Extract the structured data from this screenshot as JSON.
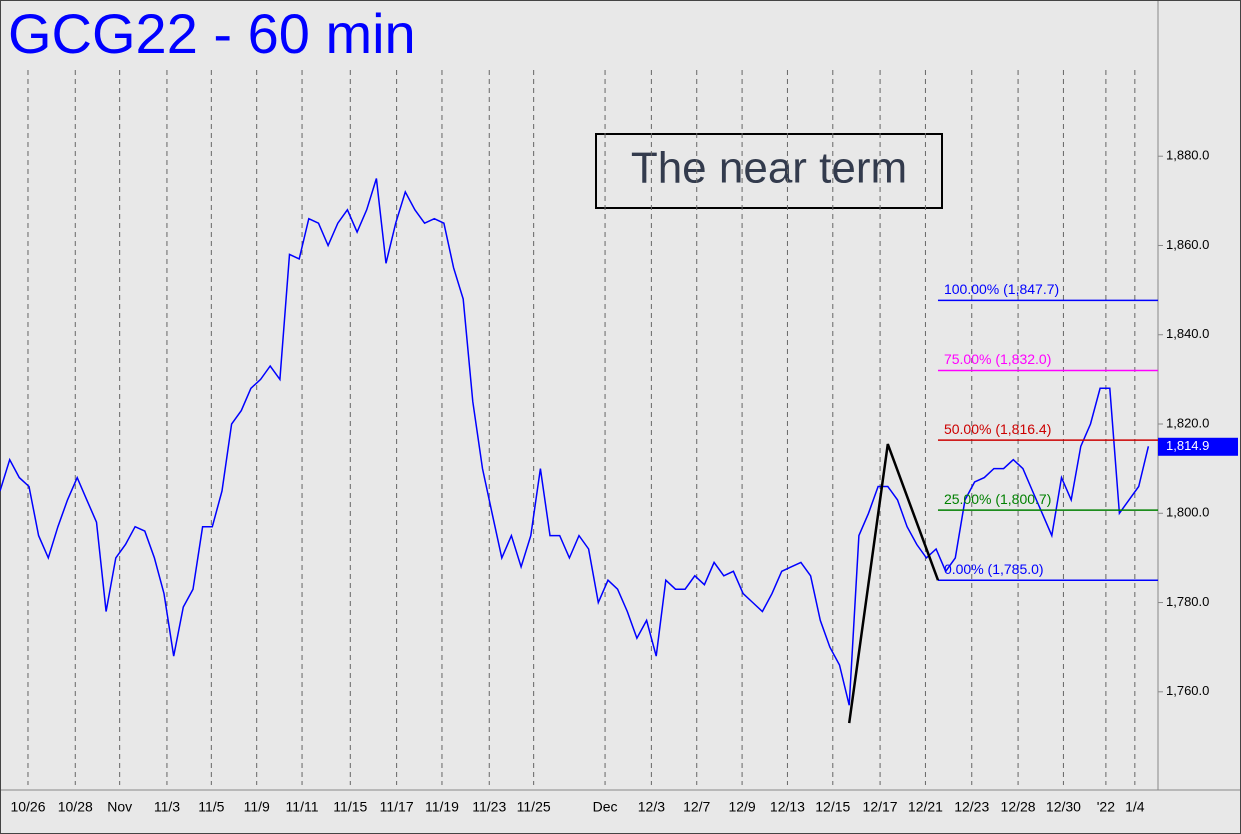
{
  "chart_data": {
    "type": "line",
    "title": "GCG22 - 60 min",
    "annotation": "The near term",
    "xlim": [
      0,
      120
    ],
    "ylim": [
      1738,
      1915
    ],
    "xticks": [
      {
        "value": 2.9,
        "label": "10/26"
      },
      {
        "value": 7.8,
        "label": "10/28"
      },
      {
        "value": 12.4,
        "label": "Nov"
      },
      {
        "value": 17.3,
        "label": "11/3"
      },
      {
        "value": 21.9,
        "label": "11/5"
      },
      {
        "value": 26.6,
        "label": "11/9"
      },
      {
        "value": 31.3,
        "label": "11/11"
      },
      {
        "value": 36.3,
        "label": "11/15"
      },
      {
        "value": 41.1,
        "label": "11/17"
      },
      {
        "value": 45.8,
        "label": "11/19"
      },
      {
        "value": 50.7,
        "label": "11/23"
      },
      {
        "value": 55.3,
        "label": "11/25"
      },
      {
        "value": 62.7,
        "label": "Dec"
      },
      {
        "value": 67.5,
        "label": "12/3"
      },
      {
        "value": 72.2,
        "label": "12/7"
      },
      {
        "value": 76.9,
        "label": "12/9"
      },
      {
        "value": 81.6,
        "label": "12/13"
      },
      {
        "value": 86.3,
        "label": "12/15"
      },
      {
        "value": 91.2,
        "label": "12/17"
      },
      {
        "value": 95.9,
        "label": "12/21"
      },
      {
        "value": 100.7,
        "label": "12/23"
      },
      {
        "value": 105.5,
        "label": "12/28"
      },
      {
        "value": 110.2,
        "label": "12/30"
      },
      {
        "value": 114.6,
        "label": "'22"
      },
      {
        "value": 117.6,
        "label": "1/4"
      }
    ],
    "yticks": [
      {
        "value": 1760,
        "label": "1,760.0"
      },
      {
        "value": 1780,
        "label": "1,780.0"
      },
      {
        "value": 1800,
        "label": "1,800.0"
      },
      {
        "value": 1820,
        "label": "1,820.0"
      },
      {
        "value": 1840,
        "label": "1,840.0"
      },
      {
        "value": 1860,
        "label": "1,860.0"
      },
      {
        "value": 1880,
        "label": "1,880.0"
      }
    ],
    "grid": true,
    "series": [
      {
        "color": "#0000ff",
        "x": [
          0,
          1,
          2,
          3,
          4,
          5,
          6,
          7,
          8,
          9,
          10,
          11,
          12,
          13,
          14,
          15,
          16,
          17,
          18,
          19,
          20,
          21,
          22,
          23,
          24,
          25,
          26,
          27,
          28,
          29,
          30,
          31,
          32,
          33,
          34,
          35,
          36,
          37,
          38,
          39,
          40,
          41,
          42,
          43,
          44,
          45,
          46,
          47,
          48,
          49,
          50,
          51,
          52,
          53,
          54,
          55,
          56,
          57,
          58,
          59,
          60,
          61,
          62,
          63,
          64,
          65,
          66,
          67,
          68,
          69,
          70,
          71,
          72,
          73,
          74,
          75,
          76,
          77,
          78,
          79,
          80,
          81,
          82,
          83,
          84,
          85,
          86,
          87,
          88,
          89,
          90,
          91,
          92,
          93,
          94,
          95,
          96,
          97,
          98,
          99,
          100,
          101,
          102,
          103,
          104,
          105,
          106,
          107,
          108,
          109,
          110,
          111,
          112,
          113,
          114,
          115,
          116,
          117,
          118,
          119
        ],
        "values": [
          1805,
          1812,
          1808,
          1806,
          1795,
          1790,
          1797,
          1803,
          1808,
          1803,
          1798,
          1778,
          1790,
          1793,
          1797,
          1796,
          1790,
          1782,
          1768,
          1779,
          1783,
          1797,
          1797,
          1805,
          1820,
          1823,
          1828,
          1830,
          1833,
          1830,
          1858,
          1857,
          1866,
          1865,
          1860,
          1865,
          1868,
          1863,
          1868,
          1875,
          1856,
          1865,
          1872,
          1868,
          1865,
          1866,
          1865,
          1855,
          1848,
          1825,
          1810,
          1800,
          1790,
          1795,
          1788,
          1795,
          1810,
          1795,
          1795,
          1790,
          1795,
          1792,
          1780,
          1785,
          1783,
          1778,
          1772,
          1776,
          1768,
          1785,
          1783,
          1783,
          1786,
          1784,
          1789,
          1786,
          1787,
          1782,
          1780,
          1778,
          1782,
          1787,
          1788,
          1789,
          1786,
          1776,
          1770,
          1766,
          1757,
          1795,
          1800,
          1806,
          1806,
          1803,
          1797,
          1793,
          1790,
          1792,
          1787,
          1790,
          1803,
          1807,
          1808,
          1810,
          1810,
          1812,
          1810,
          1805,
          1800,
          1795,
          1808,
          1803,
          1815,
          1820,
          1828,
          1828,
          1800,
          1803,
          1806,
          1815
        ]
      }
    ],
    "pattern": {
      "color": "#000000",
      "x": [
        88,
        92,
        97.2
      ],
      "values": [
        1753,
        1815.5,
        1785
      ]
    },
    "levels": [
      {
        "label": "100.00% (1,847.7)",
        "value": 1847.7,
        "color": "#0000ff",
        "x": 97.2
      },
      {
        "label": "75.00% (1,832.0)",
        "value": 1832.0,
        "color": "#ff00ff",
        "x": 97.2
      },
      {
        "label": "50.00% (1,816.4)",
        "value": 1816.4,
        "color": "#cc0000",
        "x": 97.2
      },
      {
        "label": "25.00% (1,800.7)",
        "value": 1800.7,
        "color": "#008000",
        "x": 97.2
      },
      {
        "label": "0.00% (1,785.0)",
        "value": 1785.0,
        "color": "#0000ff",
        "x": 97.2
      }
    ],
    "last_price": {
      "value": 1814.9,
      "label": "1,814.9",
      "color": "#0000ff"
    }
  }
}
